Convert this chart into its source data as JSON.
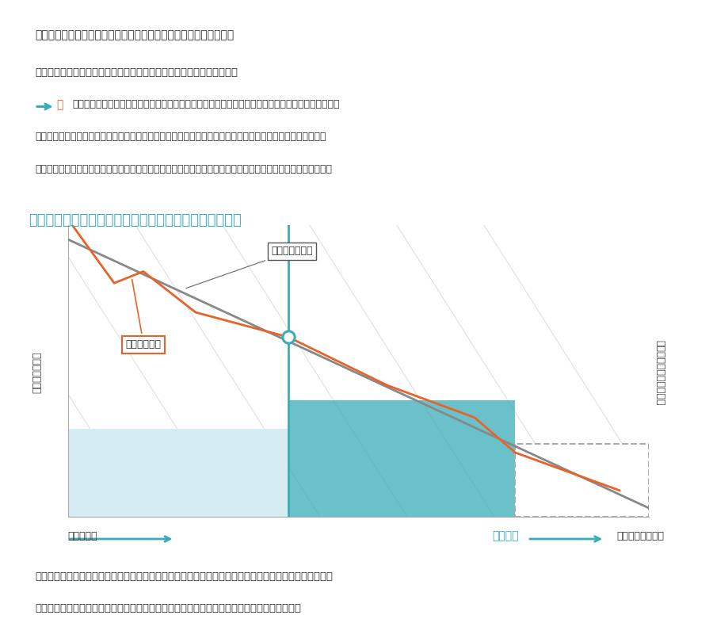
{
  "bg_color": "#ffffff",
  "top_box_color": "#efefef",
  "top_box_text1": "「＜オリコンシェル＞を活用したお支払いプラン例（イメージ）」",
  "top_box_text2": "〇年後（車検のタイミングなど）にクルマの将来価値と元金残高が一致",
  "top_box_text3": "の時点以降は、一般的にはクルマの価値がローン元金残高を上回りますので、お客さまはお支払いや",
  "top_box_text4": "　次の代替の不安なくご購入できます。また、人気車種なら、想定していたよりも月々安くご購入できたり、",
  "top_box_text5": "　更に高いグレードのおクルマがご購入できたりといった「一番お得な買い方」を手に入れることができます。",
  "chart_title": "＜オリコンシェル＞を活用したお支払いプランイメージ",
  "chart_title_color": "#3aacb8",
  "right_ylabel": "元金残高・将来価値推移",
  "left_ylabel": "月々のお支払額",
  "xlabel1": "お支払期間",
  "xlabel2": "お支払期間延長可",
  "label_loan": "ローン元金残高",
  "label_value": "将来価値推移",
  "loan_color": "#888888",
  "future_color": "#e8632a",
  "teal_color": "#3aacb8",
  "light_blue_color": "#d6ecf3",
  "bottom_box_color": "#f5f5f5",
  "bottom_text1": "ニューバジェットローンですので、お支払い途中でのお支払額変更、お支払期間（回数）の延長・短縮、",
  "bottom_text2": "スポット（一部繰上げ）返済など、一定のルールのなかで、フレキシブルな対応が可能です。"
}
